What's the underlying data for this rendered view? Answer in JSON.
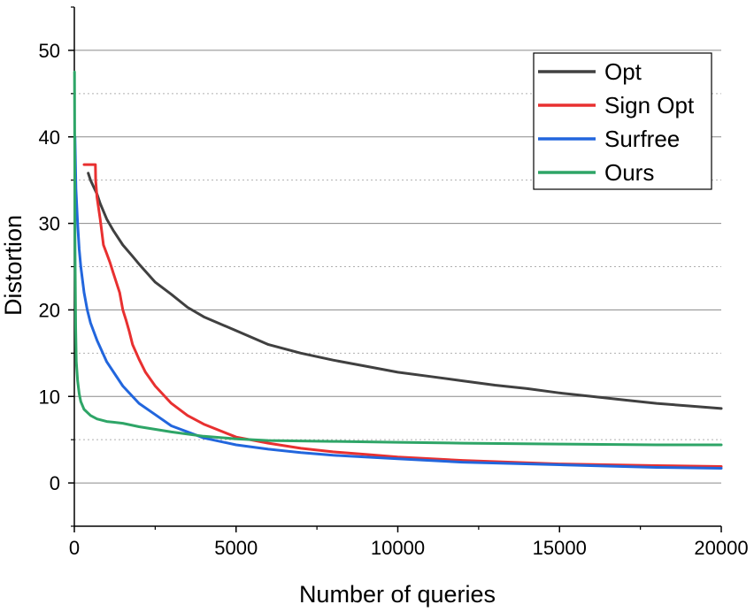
{
  "chart_data": {
    "type": "line",
    "title": "",
    "xlabel": "Number of queries",
    "ylabel": "Distortion",
    "xlim": [
      0,
      20000
    ],
    "ylim": [
      -5,
      55
    ],
    "xticks": [
      0,
      5000,
      10000,
      15000,
      20000
    ],
    "xtick_labels": [
      "0",
      "5000",
      "10000",
      "15000",
      "20000"
    ],
    "yticks": [
      0,
      10,
      20,
      30,
      40,
      50
    ],
    "ytick_labels": [
      "0",
      "10",
      "20",
      "30",
      "40",
      "50"
    ],
    "grid": true,
    "legend_position": "top-right",
    "series": [
      {
        "name": "Opt",
        "color": "#404040",
        "x": [
          430,
          500,
          600,
          700,
          800,
          1000,
          1200,
          1500,
          1800,
          2000,
          2500,
          3000,
          3500,
          4000,
          5000,
          6000,
          7000,
          8000,
          9000,
          10000,
          11000,
          12000,
          13000,
          14000,
          15000,
          16000,
          17000,
          18000,
          19000,
          20000
        ],
        "y": [
          35.8,
          35.0,
          34.2,
          33.4,
          32.3,
          30.5,
          29.2,
          27.5,
          26.2,
          25.3,
          23.2,
          21.8,
          20.3,
          19.2,
          17.6,
          16.0,
          15.0,
          14.2,
          13.5,
          12.8,
          12.3,
          11.8,
          11.3,
          10.9,
          10.4,
          10.0,
          9.6,
          9.2,
          8.9,
          8.6
        ]
      },
      {
        "name": "Sign Opt",
        "color": "#e83030",
        "x": [
          300,
          650,
          660,
          700,
          800,
          900,
          1000,
          1100,
          1200,
          1400,
          1500,
          1600,
          1700,
          1800,
          2000,
          2200,
          2500,
          3000,
          3500,
          4000,
          5000,
          6000,
          7000,
          8000,
          9000,
          10000,
          12000,
          15000,
          18000,
          20000
        ],
        "y": [
          36.8,
          36.8,
          35.0,
          33.0,
          30.5,
          27.5,
          26.5,
          25.5,
          24.3,
          22.0,
          20.0,
          18.8,
          17.5,
          16.0,
          14.3,
          12.8,
          11.2,
          9.2,
          7.8,
          6.8,
          5.3,
          4.6,
          4.0,
          3.6,
          3.3,
          3.0,
          2.6,
          2.2,
          2.0,
          1.9
        ]
      },
      {
        "name": "Surfree",
        "color": "#2266dd",
        "x": [
          20,
          50,
          100,
          150,
          200,
          300,
          400,
          500,
          700,
          1000,
          1500,
          2000,
          2500,
          3000,
          4000,
          5000,
          6000,
          7000,
          8000,
          9000,
          10000,
          12000,
          15000,
          18000,
          20000
        ],
        "y": [
          40.0,
          34.0,
          30.0,
          27.0,
          25.0,
          22.0,
          20.0,
          18.5,
          16.5,
          14.0,
          11.2,
          9.2,
          7.9,
          6.6,
          5.2,
          4.4,
          3.9,
          3.5,
          3.2,
          3.0,
          2.8,
          2.4,
          2.1,
          1.8,
          1.7
        ]
      },
      {
        "name": "Ours",
        "color": "#2ea567",
        "x": [
          5,
          10,
          20,
          40,
          60,
          100,
          150,
          200,
          300,
          500,
          700,
          1000,
          1500,
          2000,
          3000,
          4000,
          5000,
          6000,
          8000,
          10000,
          12000,
          15000,
          18000,
          20000
        ],
        "y": [
          47.5,
          40.0,
          28.0,
          18.0,
          14.0,
          11.8,
          10.3,
          9.4,
          8.5,
          7.8,
          7.4,
          7.1,
          6.9,
          6.5,
          5.9,
          5.4,
          5.1,
          4.9,
          4.8,
          4.7,
          4.6,
          4.5,
          4.4,
          4.4
        ]
      }
    ]
  }
}
